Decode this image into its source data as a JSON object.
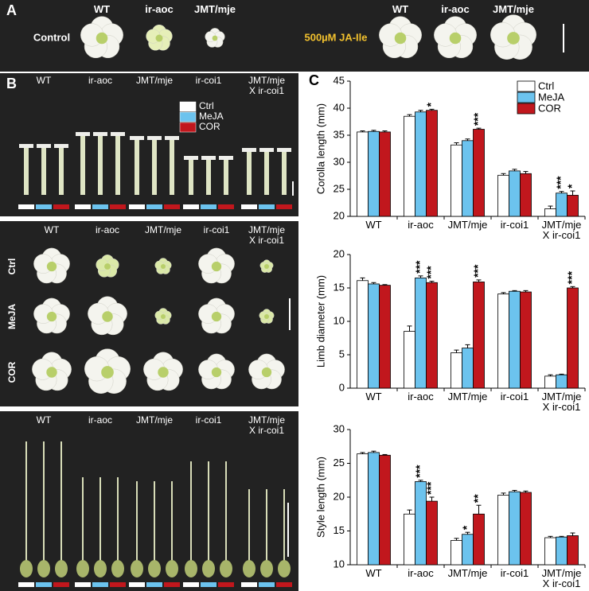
{
  "panel_a": {
    "label": "A",
    "control": {
      "row_label": "Control",
      "columns": [
        "WT",
        "ir-aoc",
        "JMT/mje"
      ]
    },
    "treated": {
      "row_label": "500µM JA-Ile",
      "columns": [
        "WT",
        "ir-aoc",
        "JMT/mje"
      ]
    }
  },
  "panel_b": {
    "label": "B",
    "corolla": {
      "columns": [
        "WT",
        "ir-aoc",
        "JMT/mje",
        "ir-coi1",
        "JMT/mje\nX ir-coi1"
      ],
      "legend": [
        "Ctrl",
        "MeJA",
        "COR"
      ]
    },
    "limb": {
      "columns": [
        "WT",
        "ir-aoc",
        "JMT/mje",
        "ir-coi1",
        "JMT/mje\nX ir-coi1"
      ],
      "rows": [
        "Ctrl",
        "MeJA",
        "COR"
      ]
    },
    "style": {
      "columns": [
        "WT",
        "ir-aoc",
        "JMT/mje",
        "ir-coi1",
        "JMT/mje\nX ir-coi1"
      ]
    }
  },
  "panel_c_label": "C",
  "chart_data": [
    {
      "type": "bar",
      "y_label": "Corolla length (mm)",
      "categories": [
        "WT",
        "ir-aoc",
        "JMT/mje",
        "ir-coi1",
        "JMT/mje\nX ir-coi1"
      ],
      "ylim": [
        20,
        45
      ],
      "yticks": [
        20,
        25,
        30,
        35,
        40,
        45
      ],
      "legend": "top-right",
      "series": [
        {
          "name": "Ctrl",
          "color": "#ffffff",
          "values": [
            35.6,
            38.5,
            33.2,
            27.6,
            21.4
          ],
          "errors": [
            0.2,
            0.3,
            0.4,
            0.3,
            0.5
          ],
          "annotations": [
            null,
            null,
            null,
            null,
            null
          ]
        },
        {
          "name": "MeJA",
          "color": "#6cc3ee",
          "values": [
            35.7,
            39.3,
            34.0,
            28.4,
            24.3
          ],
          "errors": [
            0.2,
            0.3,
            0.3,
            0.3,
            0.3
          ],
          "annotations": [
            null,
            null,
            null,
            null,
            "***"
          ]
        },
        {
          "name": "COR",
          "color": "#c1171d",
          "values": [
            35.6,
            39.6,
            36.1,
            27.9,
            23.9
          ],
          "errors": [
            0.2,
            0.2,
            0.2,
            0.4,
            0.8
          ],
          "annotations": [
            null,
            "*",
            "***",
            null,
            "*"
          ]
        }
      ]
    },
    {
      "type": "bar",
      "y_label": "Limb diameter (mm)",
      "categories": [
        "WT",
        "ir-aoc",
        "JMT/mje",
        "ir-coi1",
        "JMT/mje\nX ir-coi1"
      ],
      "ylim": [
        0,
        20
      ],
      "yticks": [
        0,
        5,
        10,
        15,
        20
      ],
      "series": [
        {
          "color": "#ffffff",
          "values": [
            16.1,
            8.5,
            5.3,
            14.1,
            1.8
          ],
          "errors": [
            0.4,
            0.8,
            0.4,
            0.2,
            0.2
          ],
          "annotations": [
            null,
            null,
            null,
            null,
            null
          ]
        },
        {
          "color": "#6cc3ee",
          "values": [
            15.6,
            16.5,
            6.0,
            14.5,
            2.0
          ],
          "errors": [
            0.2,
            0.3,
            0.5,
            0.1,
            0.1
          ],
          "annotations": [
            null,
            "***",
            null,
            null,
            null
          ]
        },
        {
          "color": "#c1171d",
          "values": [
            15.4,
            15.8,
            15.9,
            14.4,
            15.0
          ],
          "errors": [
            0.1,
            0.2,
            0.3,
            0.2,
            0.2
          ],
          "annotations": [
            null,
            "***",
            "***",
            null,
            "***"
          ]
        }
      ]
    },
    {
      "type": "bar",
      "y_label": "Style length (mm)",
      "categories": [
        "WT",
        "ir-aoc",
        "JMT/mje",
        "ir-coi1",
        "JMT/mje\nX ir-coi1"
      ],
      "ylim": [
        10,
        30
      ],
      "yticks": [
        10,
        15,
        20,
        25,
        30
      ],
      "series": [
        {
          "color": "#ffffff",
          "values": [
            26.4,
            17.5,
            13.6,
            20.3,
            14.0
          ],
          "errors": [
            0.2,
            0.6,
            0.3,
            0.3,
            0.2
          ],
          "annotations": [
            null,
            null,
            null,
            null,
            null
          ]
        },
        {
          "color": "#6cc3ee",
          "values": [
            26.6,
            22.3,
            14.5,
            20.8,
            14.1
          ],
          "errors": [
            0.2,
            0.2,
            0.3,
            0.2,
            0.1
          ],
          "annotations": [
            null,
            "***",
            "*",
            null,
            null
          ]
        },
        {
          "color": "#c1171d",
          "values": [
            26.2,
            19.4,
            17.5,
            20.7,
            14.3
          ],
          "errors": [
            0.1,
            0.6,
            1.3,
            0.2,
            0.4
          ],
          "annotations": [
            null,
            "***",
            "**",
            null,
            null
          ]
        }
      ]
    }
  ]
}
